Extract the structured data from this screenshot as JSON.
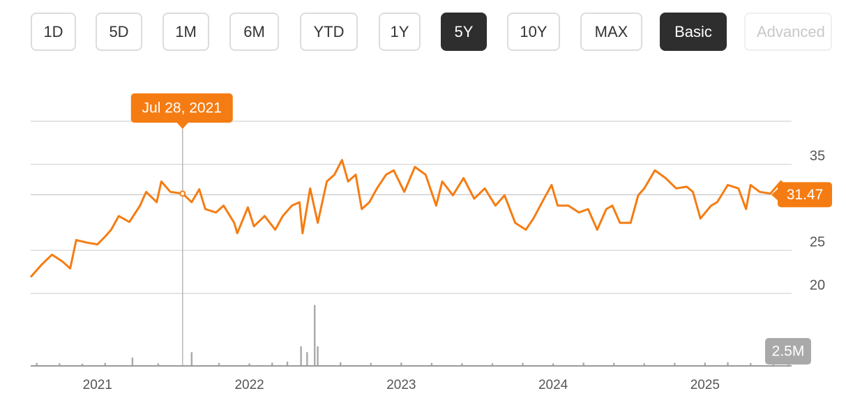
{
  "toolbar": {
    "buttons": [
      "1D",
      "5D",
      "1M",
      "6M",
      "YTD",
      "1Y",
      "5Y",
      "10Y",
      "MAX",
      "Basic",
      "Advanced"
    ],
    "selected": [
      6,
      9
    ]
  },
  "chart_data": [
    {
      "type": "line",
      "color": "#f57c12",
      "x": [
        2020.56,
        2020.63,
        2020.7,
        2020.77,
        2020.82,
        2020.86,
        2020.93,
        2021.0,
        2021.05,
        2021.09,
        2021.14,
        2021.21,
        2021.28,
        2021.32,
        2021.39,
        2021.42,
        2021.48,
        2021.56,
        2021.62,
        2021.67,
        2021.71,
        2021.78,
        2021.83,
        2021.9,
        2021.92,
        2021.99,
        2022.03,
        2022.1,
        2022.17,
        2022.22,
        2022.28,
        2022.33,
        2022.35,
        2022.4,
        2022.45,
        2022.51,
        2022.56,
        2022.61,
        2022.65,
        2022.7,
        2022.74,
        2022.79,
        2022.84,
        2022.9,
        2022.95,
        2023.02,
        2023.09,
        2023.16,
        2023.23,
        2023.27,
        2023.34,
        2023.41,
        2023.48,
        2023.55,
        2023.62,
        2023.68,
        2023.75,
        2023.82,
        2023.87,
        2023.94,
        2023.99,
        2024.03,
        2024.1,
        2024.17,
        2024.23,
        2024.29,
        2024.35,
        2024.39,
        2024.44,
        2024.51,
        2024.56,
        2024.6,
        2024.67,
        2024.74,
        2024.81,
        2024.88,
        2024.92,
        2024.97,
        2025.04,
        2025.08,
        2025.15,
        2025.22,
        2025.27,
        2025.3,
        2025.36,
        2025.43,
        2025.5,
        2025.57
      ],
      "values": [
        21.9,
        23.3,
        24.5,
        23.7,
        22.9,
        26.2,
        25.9,
        25.7,
        26.6,
        27.4,
        29.0,
        28.3,
        30.2,
        31.8,
        30.6,
        33.0,
        31.8,
        31.6,
        30.6,
        32.1,
        29.8,
        29.4,
        30.2,
        28.2,
        27.0,
        30.0,
        27.8,
        29.0,
        27.4,
        29.0,
        30.2,
        30.6,
        27.0,
        32.2,
        28.2,
        33.0,
        33.8,
        35.5,
        33.0,
        33.8,
        29.8,
        30.6,
        32.2,
        33.8,
        34.3,
        31.8,
        34.7,
        33.8,
        30.2,
        33.0,
        31.4,
        33.4,
        31.0,
        32.2,
        30.2,
        31.4,
        28.2,
        27.4,
        28.7,
        31.0,
        32.6,
        30.2,
        30.2,
        29.4,
        29.8,
        27.4,
        29.8,
        30.2,
        28.2,
        28.2,
        31.4,
        32.2,
        34.3,
        33.4,
        32.2,
        32.4,
        31.8,
        28.7,
        30.2,
        30.6,
        32.6,
        32.2,
        29.8,
        32.6,
        31.8,
        31.6,
        33.0,
        31.47
      ],
      "xlim": [
        2020.56,
        2025.57
      ],
      "xticks": [
        2021,
        2022,
        2023,
        2024,
        2025
      ],
      "ylim": [
        20,
        40
      ],
      "yticks": [
        20,
        25,
        35
      ],
      "grid": true,
      "cursor": {
        "x": 2021.56,
        "label": "Jul 28, 2021"
      },
      "last_value": 31.47
    },
    {
      "type": "bar",
      "color": "#a9a9a9",
      "x": [
        2020.6,
        2020.75,
        2020.9,
        2021.05,
        2021.23,
        2021.4,
        2021.62,
        2021.8,
        2022.0,
        2022.15,
        2022.25,
        2022.34,
        2022.38,
        2022.43,
        2022.45,
        2022.6,
        2022.8,
        2023.0,
        2023.2,
        2023.4,
        2023.6,
        2023.8,
        2024.0,
        2024.2,
        2024.4,
        2024.6,
        2024.8,
        2025.0,
        2025.15,
        2025.3,
        2025.45,
        2025.55
      ],
      "values": [
        400000,
        350000,
        300000,
        400000,
        1150000,
        350000,
        1900000,
        400000,
        350000,
        450000,
        600000,
        2700000,
        1900000,
        8400000,
        2700000,
        500000,
        400000,
        450000,
        400000,
        350000,
        350000,
        400000,
        350000,
        450000,
        400000,
        350000,
        400000,
        450000,
        500000,
        400000,
        450000,
        500000
      ],
      "xlim": [
        2020.56,
        2025.57
      ],
      "ylim": [
        0,
        10000000
      ],
      "marker": {
        "value": 2500000,
        "label": "2.5M"
      }
    }
  ]
}
